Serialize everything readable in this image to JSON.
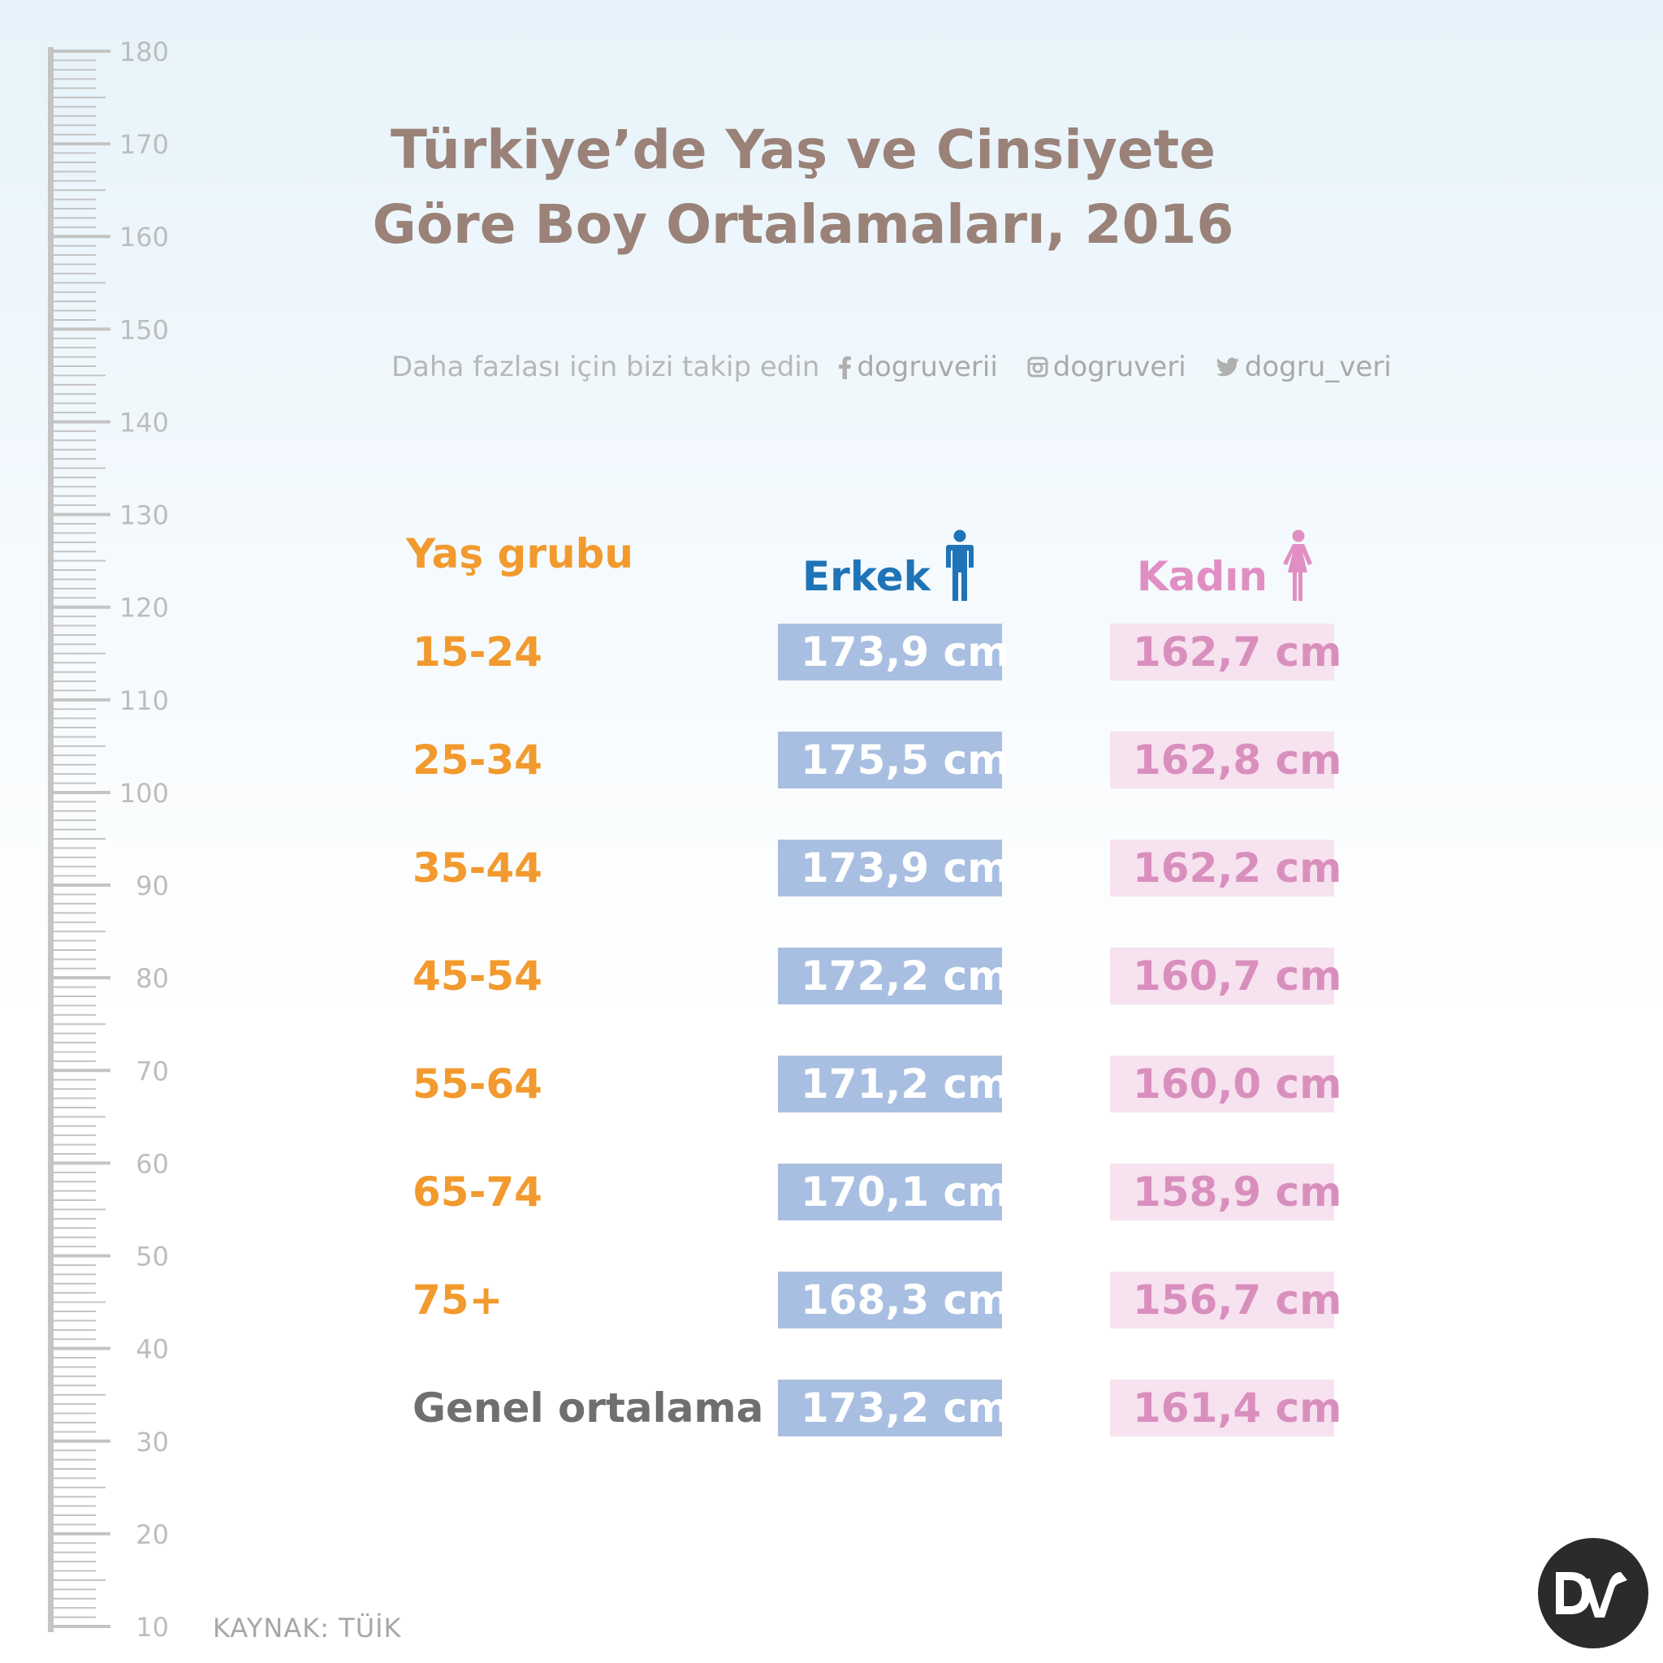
{
  "ruler": {
    "min": 10,
    "max": 180,
    "step": 10,
    "minor_per_major": 10
  },
  "title": {
    "line1": "Türkiye’de Yaş ve Cinsiyete",
    "line2": "Göre Boy Ortalamaları, 2016"
  },
  "follow": {
    "text": "Daha fazlası için bizi takip edin",
    "facebook": "dogruverii",
    "instagram": "dogruveri",
    "twitter": "dogru_veri",
    "icons": [
      "facebook-icon",
      "instagram-icon",
      "twitter-icon"
    ]
  },
  "headers": {
    "age": "Yaş grubu",
    "male": "Erkek",
    "female": "Kadın",
    "male_icon": "male-person-icon",
    "female_icon": "female-person-icon"
  },
  "rows": [
    {
      "age": "15-24",
      "male": "173,9 cm",
      "female": "162,7 cm"
    },
    {
      "age": "25-34",
      "male": "175,5 cm",
      "female": "162,8 cm"
    },
    {
      "age": "35-44",
      "male": "173,9 cm",
      "female": "162,2 cm"
    },
    {
      "age": "45-54",
      "male": "172,2 cm",
      "female": "160,7 cm"
    },
    {
      "age": "55-64",
      "male": "171,2 cm",
      "female": "160,0 cm"
    },
    {
      "age": "65-74",
      "male": "170,1 cm",
      "female": "158,9 cm"
    },
    {
      "age": "75+",
      "male": "168,3 cm",
      "female": "156,7 cm"
    },
    {
      "age": "Genel ortalama",
      "male": "173,2 cm",
      "female": "161,4 cm"
    }
  ],
  "source": "KAYNAK: TÜİK",
  "colors": {
    "title": "#9a8279",
    "age": "#f29a2e",
    "male": "#1f74b7",
    "male_cell": "#a8bfe1",
    "female": "#e18fc3",
    "female_cell": "#f7e2ef",
    "ruler": "#c4c4c4"
  }
}
